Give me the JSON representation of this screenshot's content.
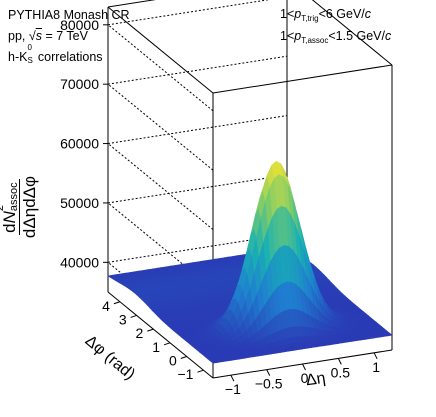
{
  "annotations": {
    "generator": "PYTHIA8 Monash CR",
    "system_pre": "pp, ",
    "sqrt_symbol": "√",
    "s_var": "s",
    "system_post": " = 7 TeV",
    "corr_pre": "h-K",
    "corr_sub": "S",
    "corr_sup": "0",
    "corr_post": " correlations",
    "trig_pre": "1<",
    "trig_p": "p",
    "trig_sub": "T,trig",
    "trig_post": "<6 GeV/",
    "trig_c": "c",
    "assoc_pre": "1<",
    "assoc_p": "p",
    "assoc_sub": "T,assoc",
    "assoc_post": "<1.5 GeV/",
    "assoc_c": "c"
  },
  "chart_data": {
    "type": "surface",
    "zlabel": {
      "numerator_d": "d",
      "numerator_N": "N",
      "numerator_sup": "2",
      "numerator_sub": "assoc",
      "denominator": "dΔηdΔφ"
    },
    "xlabel": "Δη",
    "ylabel": "Δφ (rad)",
    "z_ticks": [
      40000,
      50000,
      60000,
      70000,
      80000
    ],
    "z_tick_labels": [
      "40000",
      "50000",
      "60000",
      "70000",
      "80000"
    ],
    "zlim": [
      35000,
      83000
    ],
    "x_ticks": [
      -1,
      -0.5,
      0,
      0.5,
      1
    ],
    "x_tick_labels": [
      "−1",
      "−0.5",
      "0",
      "0.5",
      "1"
    ],
    "xlim": [
      -1.25,
      1.25
    ],
    "y_ticks": [
      -1,
      0,
      1,
      2,
      3,
      4
    ],
    "y_tick_labels": [
      "−1",
      "0",
      "1",
      "2",
      "3",
      "4"
    ],
    "ylim": [
      -1.5708,
      4.7124
    ],
    "baseline": 37500,
    "near_side_peak": {
      "x": 0,
      "y": 0,
      "z": 65500
    },
    "away_side_level": 38500,
    "colormap": [
      "#2a3bb5",
      "#1f7fd0",
      "#19b0b4",
      "#7ccb6a",
      "#f2e332"
    ]
  }
}
